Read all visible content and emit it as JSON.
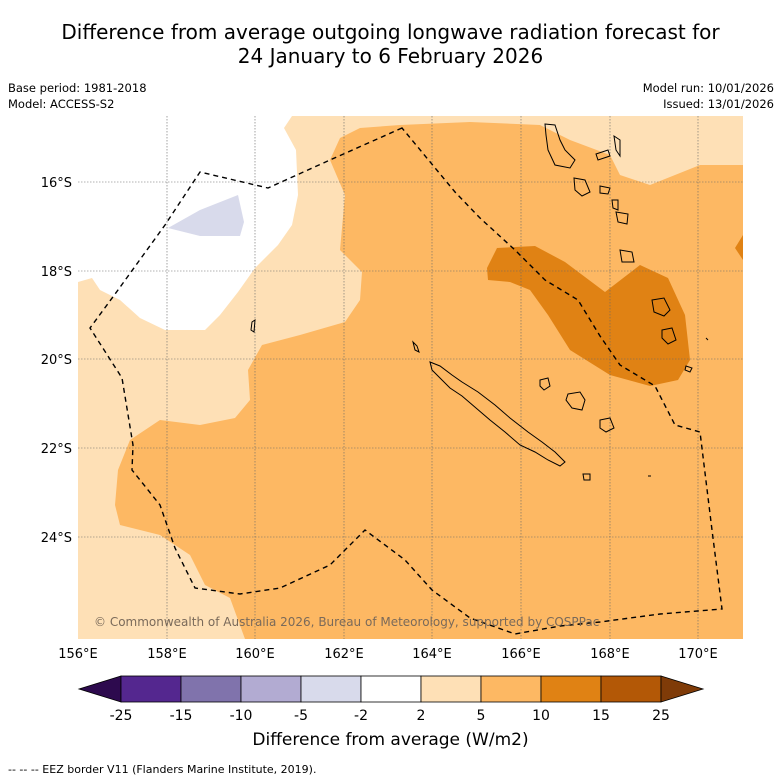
{
  "title": {
    "line1": "Difference from average outgoing longwave radiation forecast for",
    "line2": "24 January to 6 February 2026"
  },
  "meta_left": {
    "base_period": "Base period: 1981-2018",
    "model": "Model: ACCESS-S2"
  },
  "meta_right": {
    "model_run": "Model run: 10/01/2026",
    "issued": "Issued: 13/01/2026"
  },
  "map": {
    "lat_labels": [
      "16°S",
      "18°S",
      "20°S",
      "22°S",
      "24°S"
    ],
    "lon_labels": [
      "156°E",
      "158°E",
      "160°E",
      "162°E",
      "164°E",
      "166°E",
      "168°E",
      "170°E"
    ],
    "copyright": "© Commonwealth of Australia 2026, Bureau of Meteorology, supported by COSPPac"
  },
  "colorbar": {
    "title": "Difference from average (W/m2)",
    "tick_labels": [
      "-25",
      "-15",
      "-10",
      "-5",
      "-2",
      "2",
      "5",
      "10",
      "15",
      "25"
    ],
    "colors": [
      "#2d0a4e",
      "#54278f",
      "#8073ac",
      "#b2abd2",
      "#d8daeb",
      "#ffffff",
      "#fee0b6",
      "#fdb863",
      "#e08214",
      "#b35806",
      "#7f3b08"
    ]
  },
  "footer": {
    "legend_text": "--  --  -- EEZ border V11 (Flanders Marine Institute, 2019)."
  }
}
